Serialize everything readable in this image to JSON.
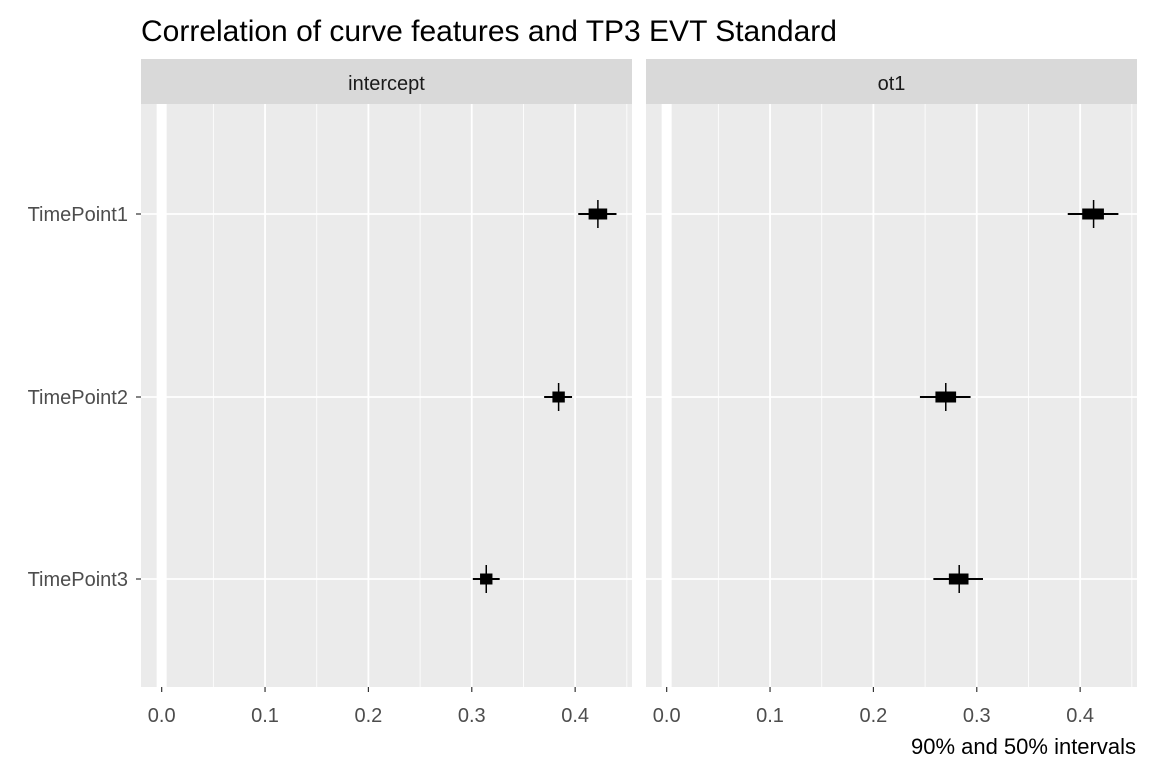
{
  "chart_data": {
    "type": "interval",
    "title": "Correlation of curve features and TP3 EVT Standard",
    "caption": "90% and 50% intervals",
    "categories": [
      "TimePoint1",
      "TimePoint2",
      "TimePoint3"
    ],
    "x_ticks": [
      0.0,
      0.1,
      0.2,
      0.3,
      0.4
    ],
    "x_tick_labels": [
      "0.0",
      "0.1",
      "0.2",
      "0.3",
      "0.4"
    ],
    "xlim": [
      -0.02,
      0.455
    ],
    "grid": true,
    "colors": {
      "panel_bg": "#ebebeb",
      "grid": "#ffffff",
      "strip_bg": "#d9d9d9",
      "marks": "#000000",
      "text": "#000000",
      "tick_text": "#4d4d4d"
    },
    "panels": [
      {
        "label": "intercept",
        "series": [
          {
            "category": "TimePoint1",
            "median": 0.422,
            "ci50": [
              0.413,
              0.431
            ],
            "ci90": [
              0.403,
              0.44
            ]
          },
          {
            "category": "TimePoint2",
            "median": 0.384,
            "ci50": [
              0.378,
              0.39
            ],
            "ci90": [
              0.37,
              0.397
            ]
          },
          {
            "category": "TimePoint3",
            "median": 0.314,
            "ci50": [
              0.308,
              0.32
            ],
            "ci90": [
              0.301,
              0.327
            ]
          }
        ]
      },
      {
        "label": "ot1",
        "series": [
          {
            "category": "TimePoint1",
            "median": 0.413,
            "ci50": [
              0.402,
              0.423
            ],
            "ci90": [
              0.388,
              0.437
            ]
          },
          {
            "category": "TimePoint2",
            "median": 0.27,
            "ci50": [
              0.26,
              0.28
            ],
            "ci90": [
              0.245,
              0.294
            ]
          },
          {
            "category": "TimePoint3",
            "median": 0.283,
            "ci50": [
              0.273,
              0.292
            ],
            "ci90": [
              0.258,
              0.306
            ]
          }
        ]
      }
    ]
  }
}
